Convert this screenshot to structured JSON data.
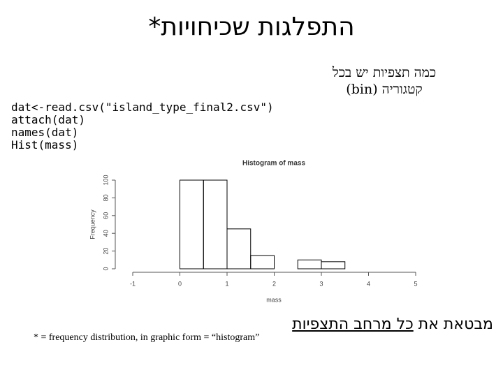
{
  "title": "התפלגות שכיחויות*",
  "note": [
    "כמה תצפיות יש בכל",
    "קטגוריה (bin)"
  ],
  "code": [
    "dat<-read.csv(\"island_type_final2.csv\")",
    "attach(dat)",
    "names(dat)",
    "Hist(mass)"
  ],
  "caption": {
    "before": "מבטאת את ",
    "underlined": "כל מרחב התצפיות"
  },
  "footnote": "* = frequency distribution, in graphic form = “histogram”",
  "chart_data": {
    "type": "histogram",
    "title": "Histogram of mass",
    "x_label": "mass",
    "y_label": "Frequency",
    "bins": [
      0,
      0.5,
      1,
      1.5,
      2,
      2.5,
      3,
      3.5,
      4
    ],
    "values": [
      100,
      100,
      45,
      15,
      0,
      10,
      8,
      0
    ],
    "xlim": [
      -1,
      5
    ],
    "xticks": [
      -1,
      0,
      1,
      2,
      3,
      4,
      5
    ],
    "ylim": [
      0,
      100
    ],
    "yticks": [
      0,
      20,
      40,
      60,
      80,
      100
    ],
    "color": "#000000"
  }
}
